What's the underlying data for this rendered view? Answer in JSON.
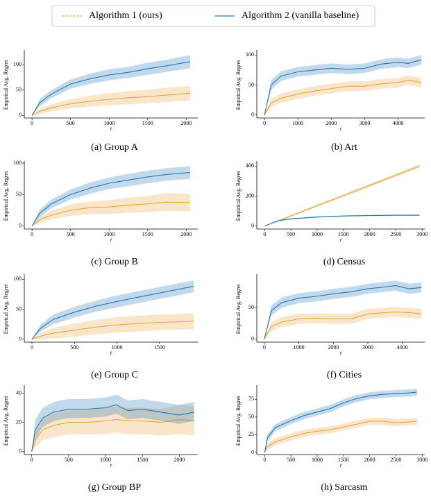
{
  "legend": {
    "entries": [
      {
        "name": "Algorithm 1 (ours)",
        "color": "#e8a33d",
        "dash": true
      },
      {
        "name": "Algorithm 2 (vanilla baseline)",
        "color": "#1f77b4",
        "dash": false
      }
    ]
  },
  "chart_data": [
    {
      "type": "line",
      "caption": "(a) Group A",
      "xlabel": "t",
      "ylabel": "Empirical Avg. Regret",
      "x": [
        0,
        100,
        250,
        500,
        750,
        1000,
        1250,
        1500,
        1750,
        2050
      ],
      "xlim": [
        -100,
        2150
      ],
      "xticks": [
        0,
        500,
        1000,
        1500,
        2000
      ],
      "ylim": [
        -5,
        125
      ],
      "yticks": [
        0,
        50,
        100
      ],
      "series": [
        {
          "color": "#e8a33d",
          "values": [
            0,
            8,
            15,
            23,
            28,
            32,
            35,
            37,
            40,
            44
          ],
          "lower": [
            0,
            3,
            8,
            14,
            17,
            20,
            22,
            24,
            26,
            30
          ],
          "upper": [
            0,
            13,
            22,
            32,
            39,
            44,
            48,
            51,
            55,
            58
          ]
        },
        {
          "color": "#1f77b4",
          "values": [
            0,
            25,
            42,
            62,
            72,
            80,
            85,
            92,
            98,
            106
          ],
          "lower": [
            0,
            18,
            34,
            53,
            62,
            69,
            74,
            80,
            86,
            93
          ],
          "upper": [
            0,
            32,
            50,
            71,
            82,
            91,
            96,
            104,
            110,
            119
          ]
        }
      ]
    },
    {
      "type": "line",
      "caption": "(b) Art",
      "xlabel": "t",
      "ylabel": "Empirical Avg. Regret",
      "x": [
        0,
        200,
        500,
        1000,
        1500,
        2000,
        2500,
        3000,
        3500,
        4000,
        4300,
        4700
      ],
      "xlim": [
        -230,
        4800
      ],
      "xticks": [
        0,
        1000,
        2000,
        3000,
        4000
      ],
      "ylim": [
        -5,
        105
      ],
      "yticks": [
        0,
        50,
        100
      ],
      "series": [
        {
          "color": "#e8a33d",
          "values": [
            0,
            20,
            28,
            35,
            40,
            44,
            48,
            48,
            52,
            54,
            58,
            54
          ],
          "lower": [
            0,
            13,
            20,
            27,
            32,
            36,
            40,
            40,
            44,
            46,
            50,
            46
          ],
          "upper": [
            0,
            27,
            36,
            43,
            48,
            52,
            56,
            56,
            60,
            62,
            66,
            62
          ]
        },
        {
          "color": "#1f77b4",
          "values": [
            0,
            50,
            65,
            72,
            75,
            78,
            76,
            78,
            85,
            88,
            86,
            92
          ],
          "lower": [
            0,
            42,
            57,
            64,
            67,
            70,
            68,
            70,
            77,
            80,
            78,
            84
          ],
          "upper": [
            0,
            58,
            73,
            80,
            83,
            86,
            84,
            86,
            93,
            96,
            94,
            100
          ]
        }
      ]
    },
    {
      "type": "line",
      "caption": "(c) Group B",
      "xlabel": "t",
      "ylabel": "Empirical Avg. Regret",
      "x": [
        0,
        100,
        250,
        500,
        750,
        1000,
        1250,
        1500,
        1750,
        2050
      ],
      "xlim": [
        -100,
        2150
      ],
      "xticks": [
        0,
        500,
        1000,
        1500,
        2000
      ],
      "ylim": [
        -5,
        100
      ],
      "yticks": [
        0,
        50,
        100
      ],
      "series": [
        {
          "color": "#e8a33d",
          "values": [
            0,
            10,
            17,
            25,
            29,
            30,
            33,
            35,
            38,
            37
          ],
          "lower": [
            0,
            5,
            10,
            16,
            19,
            19,
            21,
            22,
            24,
            23
          ],
          "upper": [
            0,
            15,
            24,
            34,
            39,
            41,
            45,
            48,
            52,
            51
          ]
        },
        {
          "color": "#1f77b4",
          "values": [
            0,
            20,
            35,
            50,
            60,
            68,
            73,
            78,
            82,
            85
          ],
          "lower": [
            0,
            14,
            28,
            42,
            51,
            59,
            63,
            68,
            72,
            75
          ],
          "upper": [
            0,
            26,
            42,
            58,
            69,
            77,
            83,
            88,
            92,
            95
          ]
        }
      ]
    },
    {
      "type": "line",
      "caption": "(d) Census",
      "xlabel": "t",
      "ylabel": "Empirical Avg. Regret",
      "x": [
        0,
        250,
        500,
        1000,
        1500,
        2000,
        2500,
        2950
      ],
      "xlim": [
        -150,
        3050
      ],
      "xticks": [
        0,
        500,
        1000,
        1500,
        2000,
        2500,
        3000
      ],
      "ylim": [
        -20,
        420
      ],
      "yticks": [
        0,
        200,
        400
      ],
      "series": [
        {
          "color": "#e8a33d",
          "values": [
            0,
            34,
            68,
            136,
            203,
            271,
            339,
            400
          ],
          "lower": [
            0,
            29,
            62,
            128,
            194,
            261,
            328,
            388
          ],
          "upper": [
            0,
            39,
            74,
            144,
            212,
            281,
            350,
            412
          ]
        },
        {
          "color": "#1f77b4",
          "values": [
            0,
            35,
            48,
            60,
            67,
            70,
            72,
            72
          ],
          "lower": [
            0,
            31,
            44,
            56,
            63,
            66,
            68,
            68
          ],
          "upper": [
            0,
            39,
            52,
            64,
            71,
            74,
            76,
            76
          ]
        }
      ]
    },
    {
      "type": "line",
      "caption": "(e) Group C",
      "xlabel": "t",
      "ylabel": "Empirical Avg. Regret",
      "x": [
        0,
        100,
        250,
        500,
        750,
        1000,
        1250,
        1500,
        1750,
        1900
      ],
      "xlim": [
        -90,
        1950
      ],
      "xticks": [
        0,
        500,
        1000,
        1500
      ],
      "ylim": [
        -5,
        105
      ],
      "yticks": [
        0,
        50,
        100
      ],
      "series": [
        {
          "color": "#e8a33d",
          "values": [
            0,
            5,
            10,
            15,
            20,
            24,
            26,
            28,
            29,
            30
          ],
          "lower": [
            0,
            0,
            1,
            4,
            8,
            11,
            13,
            15,
            16,
            17
          ],
          "upper": [
            0,
            10,
            19,
            26,
            32,
            37,
            39,
            41,
            42,
            43
          ]
        },
        {
          "color": "#1f77b4",
          "values": [
            0,
            18,
            33,
            45,
            55,
            63,
            70,
            77,
            84,
            88
          ],
          "lower": [
            0,
            12,
            25,
            36,
            46,
            53,
            60,
            67,
            74,
            78
          ],
          "upper": [
            0,
            24,
            41,
            54,
            64,
            73,
            80,
            87,
            94,
            98
          ]
        }
      ]
    },
    {
      "type": "line",
      "caption": "(f) Cities",
      "xlabel": "t",
      "ylabel": "Empirical Avg. Regret",
      "x": [
        0,
        200,
        500,
        1000,
        1500,
        2000,
        2500,
        3000,
        3500,
        3800,
        4200,
        4550
      ],
      "xlim": [
        -220,
        4650
      ],
      "xticks": [
        0,
        1000,
        2000,
        3000,
        4000
      ],
      "ylim": [
        -5,
        100
      ],
      "yticks": [
        0,
        50
      ],
      "series": [
        {
          "color": "#e8a33d",
          "values": [
            0,
            20,
            27,
            32,
            33,
            32,
            32,
            40,
            42,
            43,
            42,
            40
          ],
          "lower": [
            0,
            13,
            19,
            24,
            25,
            24,
            24,
            32,
            34,
            35,
            34,
            32
          ],
          "upper": [
            0,
            27,
            35,
            40,
            41,
            40,
            40,
            48,
            50,
            51,
            50,
            48
          ]
        },
        {
          "color": "#1f77b4",
          "values": [
            0,
            45,
            58,
            65,
            68,
            72,
            75,
            80,
            83,
            85,
            80,
            82
          ],
          "lower": [
            0,
            37,
            50,
            57,
            60,
            64,
            67,
            72,
            75,
            77,
            72,
            74
          ],
          "upper": [
            0,
            53,
            66,
            73,
            76,
            80,
            83,
            88,
            91,
            93,
            88,
            90
          ]
        }
      ]
    },
    {
      "type": "line",
      "caption": "(g) Group BP",
      "xlabel": "t",
      "ylabel": "Empirical Avg. Regret",
      "x": [
        0,
        50,
        150,
        300,
        500,
        750,
        1000,
        1150,
        1300,
        1500,
        1750,
        2000,
        2200
      ],
      "xlim": [
        -100,
        2250
      ],
      "xticks": [
        0,
        500,
        1000,
        1500,
        2000
      ],
      "ylim": [
        -2,
        44
      ],
      "yticks": [
        0,
        20,
        40
      ],
      "series": [
        {
          "color": "#e8a33d",
          "values": [
            0,
            8,
            15,
            18,
            20,
            20,
            21,
            22,
            21,
            21,
            20,
            22,
            21
          ],
          "lower": [
            0,
            3,
            8,
            10,
            12,
            12,
            12,
            13,
            12,
            12,
            11,
            12,
            11
          ],
          "upper": [
            0,
            13,
            22,
            26,
            28,
            28,
            30,
            31,
            30,
            30,
            29,
            32,
            31
          ]
        },
        {
          "color": "#1f77b4",
          "values": [
            0,
            15,
            23,
            27,
            29,
            29,
            30,
            32,
            28,
            29,
            27,
            25,
            27
          ],
          "lower": [
            0,
            9,
            17,
            21,
            23,
            23,
            24,
            26,
            22,
            23,
            21,
            19,
            21
          ],
          "upper": [
            0,
            22,
            30,
            34,
            36,
            36,
            37,
            39,
            35,
            36,
            34,
            32,
            34
          ]
        }
      ]
    },
    {
      "type": "line",
      "caption": "(h) Sarcasm",
      "xlabel": "t",
      "ylabel": "Empirical Avg. Regret",
      "x": [
        0,
        50,
        200,
        500,
        750,
        1000,
        1250,
        1500,
        1750,
        2000,
        2250,
        2500,
        2750,
        2900
      ],
      "xlim": [
        -150,
        3050
      ],
      "xticks": [
        0,
        500,
        1000,
        1500,
        2000,
        2500,
        3000
      ],
      "ylim": [
        -3,
        92
      ],
      "yticks": [
        0,
        25,
        50,
        75
      ],
      "series": [
        {
          "color": "#e8a33d",
          "values": [
            0,
            8,
            15,
            22,
            27,
            30,
            32,
            36,
            40,
            44,
            44,
            42,
            43,
            44
          ],
          "lower": [
            0,
            3,
            10,
            17,
            22,
            25,
            27,
            31,
            35,
            39,
            39,
            37,
            38,
            39
          ],
          "upper": [
            0,
            13,
            20,
            27,
            32,
            35,
            37,
            41,
            45,
            49,
            49,
            47,
            48,
            49
          ]
        },
        {
          "color": "#1f77b4",
          "values": [
            0,
            20,
            35,
            45,
            52,
            57,
            62,
            70,
            76,
            80,
            82,
            83,
            84,
            85
          ],
          "lower": [
            0,
            15,
            30,
            40,
            47,
            52,
            57,
            65,
            71,
            75,
            77,
            78,
            79,
            80
          ],
          "upper": [
            0,
            25,
            40,
            50,
            57,
            62,
            67,
            75,
            81,
            85,
            87,
            88,
            89,
            90
          ]
        }
      ]
    }
  ]
}
